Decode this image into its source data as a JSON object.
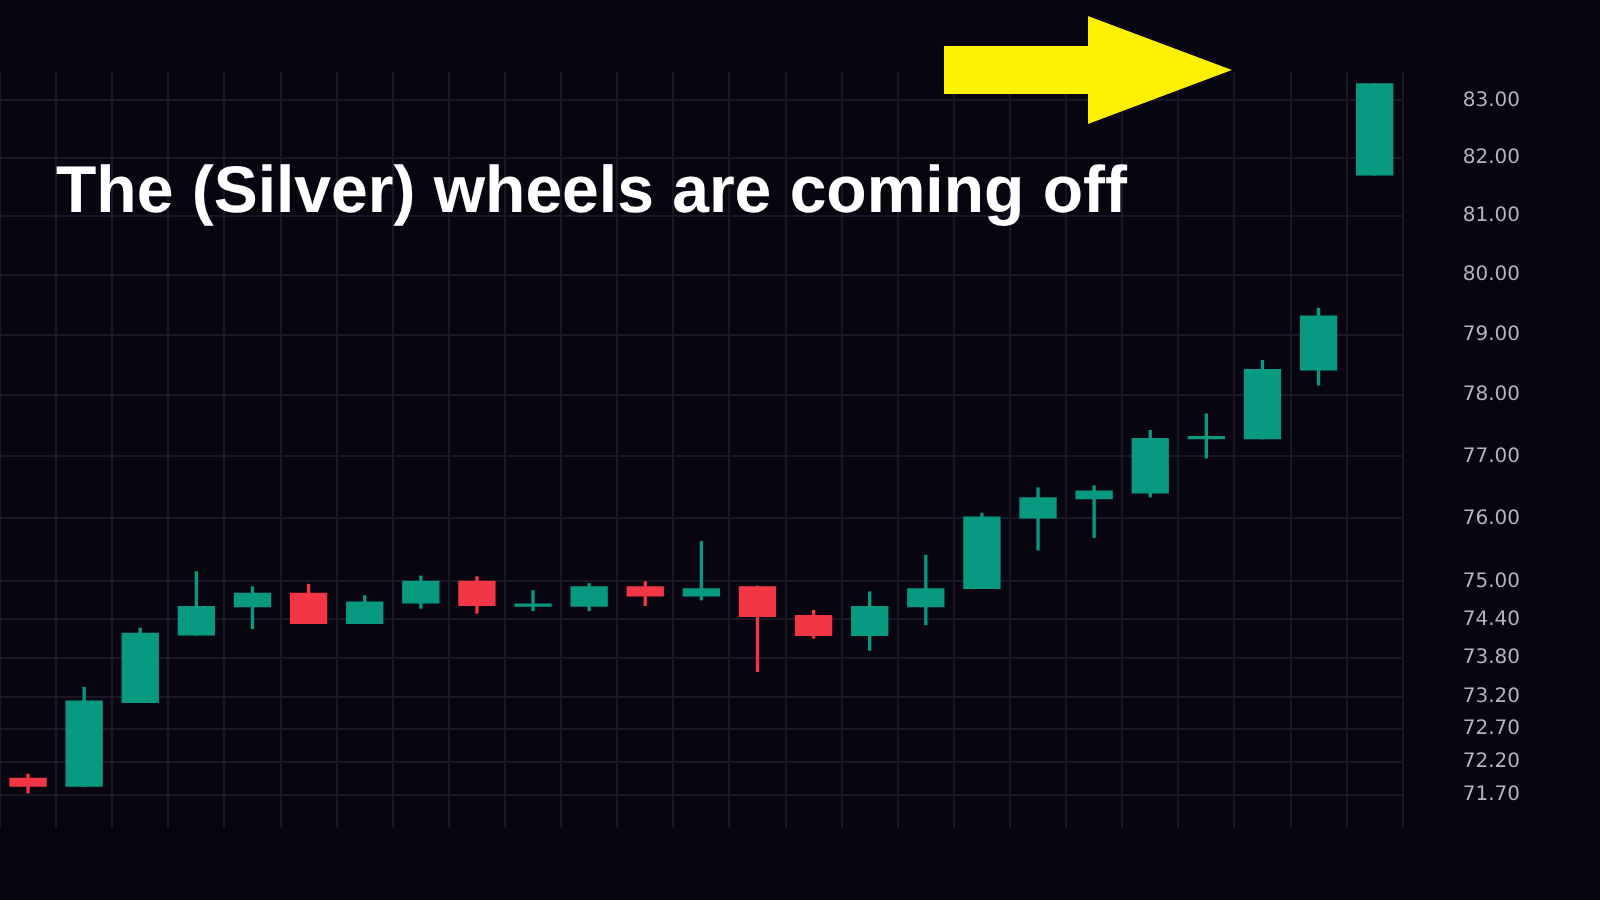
{
  "chart_data": {
    "type": "candlestick",
    "title": "The (Silver) wheels are coming off",
    "categories": [
      null,
      null,
      null,
      null,
      null,
      null,
      null,
      null,
      null,
      null,
      null,
      null,
      null,
      null,
      null,
      null,
      null,
      null,
      null,
      null,
      null,
      null,
      null,
      null,
      null
    ],
    "ohlc": [
      [
        71.95,
        72.01,
        71.73,
        71.83
      ],
      [
        71.83,
        73.34,
        71.83,
        73.13
      ],
      [
        73.11,
        74.26,
        73.11,
        74.18
      ],
      [
        74.16,
        75.15,
        74.16,
        74.6
      ],
      [
        74.6,
        74.91,
        74.26,
        74.81
      ],
      [
        74.81,
        74.95,
        74.34,
        74.34
      ],
      [
        74.34,
        74.77,
        74.34,
        74.67
      ],
      [
        74.66,
        75.08,
        74.58,
        75.0
      ],
      [
        75.0,
        75.07,
        74.5,
        74.62
      ],
      [
        74.61,
        74.85,
        74.54,
        74.62
      ],
      [
        74.61,
        74.96,
        74.54,
        74.91
      ],
      [
        74.91,
        74.99,
        74.62,
        74.77
      ],
      [
        74.77,
        75.63,
        74.71,
        74.88
      ],
      [
        74.91,
        74.92,
        73.59,
        74.45
      ],
      [
        74.46,
        74.54,
        74.11,
        74.15
      ],
      [
        74.15,
        74.83,
        73.92,
        74.6
      ],
      [
        74.6,
        75.41,
        74.32,
        74.88
      ],
      [
        74.89,
        76.08,
        74.89,
        76.02
      ],
      [
        76.01,
        76.49,
        75.5,
        76.33
      ],
      [
        76.32,
        76.52,
        75.7,
        76.44
      ],
      [
        76.41,
        77.42,
        76.35,
        77.29
      ],
      [
        77.29,
        77.69,
        76.98,
        77.3
      ],
      [
        77.29,
        78.57,
        77.29,
        78.42
      ],
      [
        78.42,
        79.44,
        78.17,
        79.31
      ],
      [
        81.71,
        83.29,
        81.71,
        83.29
      ]
    ],
    "colors": [
      "#f23645",
      "#089981",
      "#089981",
      "#089981",
      "#089981",
      "#f23645",
      "#089981",
      "#089981",
      "#f23645",
      "#089981",
      "#089981",
      "#f23645",
      "#089981",
      "#f23645",
      "#f23645",
      "#089981",
      "#089981",
      "#089981",
      "#089981",
      "#089981",
      "#089981",
      "#089981",
      "#089981",
      "#089981",
      "#089981"
    ],
    "ylim": [
      71.2,
      83.5
    ],
    "yticks": [
      {
        "value": 83,
        "label": "83.00"
      },
      {
        "value": 82,
        "label": "82.00"
      },
      {
        "value": 81,
        "label": "81.00"
      },
      {
        "value": 80,
        "label": "80.00"
      },
      {
        "value": 79,
        "label": "79.00"
      },
      {
        "value": 78,
        "label": "78.00"
      },
      {
        "value": 77,
        "label": "77.00"
      },
      {
        "value": 76,
        "label": "76.00"
      },
      {
        "value": 75,
        "label": "75.00"
      },
      {
        "value": 74.4,
        "label": "74.40"
      },
      {
        "value": 73.8,
        "label": "73.80"
      },
      {
        "value": 73.2,
        "label": "73.20"
      },
      {
        "value": 72.7,
        "label": "72.70"
      },
      {
        "value": 72.2,
        "label": "72.20"
      },
      {
        "value": 71.7,
        "label": "71.70"
      }
    ],
    "log": true,
    "grid": true,
    "tick_labels": "y"
  }
}
